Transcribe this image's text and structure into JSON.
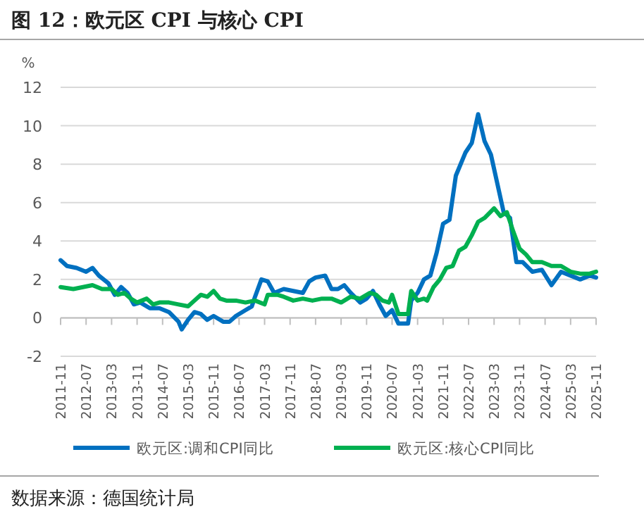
{
  "chart_data": {
    "type": "line",
    "title": "图 12：欧元区 CPI 与核心 CPI",
    "ylabel": "%",
    "annotations": [
      "数据来源：德国统计局"
    ],
    "xlim": [
      "2011-11",
      "2025-11"
    ],
    "xticks": [
      {
        "value": "2011-11",
        "label": "2011-11"
      },
      {
        "value": "2012-07",
        "label": "2012-07"
      },
      {
        "value": "2013-03",
        "label": "2013-03"
      },
      {
        "value": "2013-11",
        "label": "2013-11"
      },
      {
        "value": "2014-07",
        "label": "2014-07"
      },
      {
        "value": "2015-03",
        "label": "2015-03"
      },
      {
        "value": "2015-11",
        "label": "2015-11"
      },
      {
        "value": "2016-07",
        "label": "2016-07"
      },
      {
        "value": "2017-03",
        "label": "2017-03"
      },
      {
        "value": "2017-11",
        "label": "2017-11"
      },
      {
        "value": "2018-07",
        "label": "2018-07"
      },
      {
        "value": "2019-03",
        "label": "2019-03"
      },
      {
        "value": "2019-11",
        "label": "2019-11"
      },
      {
        "value": "2020-07",
        "label": "2020-07"
      },
      {
        "value": "2021-03",
        "label": "2021-03"
      },
      {
        "value": "2021-11",
        "label": "2021-11"
      },
      {
        "value": "2022-07",
        "label": "2022-07"
      },
      {
        "value": "2023-03",
        "label": "2023-03"
      },
      {
        "value": "2023-11",
        "label": "2023-11"
      },
      {
        "value": "2024-07",
        "label": "2024-07"
      },
      {
        "value": "2025-03",
        "label": "2025-03"
      },
      {
        "value": "2025-11",
        "label": "2025-11"
      }
    ],
    "ylim": [
      -2,
      12
    ],
    "yticks": [
      -2,
      0,
      2,
      4,
      6,
      8,
      10,
      12
    ],
    "grid": "y",
    "legend": "bottom",
    "line_style": "solid",
    "marker": "none",
    "series": [
      {
        "name": "欧元区:调和CPI同比",
        "color": "#0070c0",
        "x": [
          "2011-11",
          "2012-01",
          "2012-04",
          "2012-07",
          "2012-09",
          "2012-11",
          "2013-02",
          "2013-04",
          "2013-06",
          "2013-08",
          "2013-10",
          "2013-12",
          "2014-03",
          "2014-06",
          "2014-09",
          "2014-12",
          "2015-01",
          "2015-03",
          "2015-05",
          "2015-07",
          "2015-09",
          "2015-11",
          "2016-02",
          "2016-04",
          "2016-06",
          "2016-09",
          "2016-11",
          "2016-12",
          "2017-02",
          "2017-04",
          "2017-06",
          "2017-09",
          "2017-12",
          "2018-03",
          "2018-05",
          "2018-07",
          "2018-10",
          "2018-12",
          "2019-02",
          "2019-04",
          "2019-06",
          "2019-09",
          "2019-11",
          "2020-01",
          "2020-03",
          "2020-05",
          "2020-07",
          "2020-09",
          "2020-12",
          "2021-01",
          "2021-03",
          "2021-05",
          "2021-07",
          "2021-09",
          "2021-11",
          "2022-01",
          "2022-03",
          "2022-06",
          "2022-08",
          "2022-10",
          "2022-12",
          "2023-02",
          "2023-04",
          "2023-06",
          "2023-08",
          "2023-10",
          "2023-12",
          "2024-03",
          "2024-06",
          "2024-09",
          "2024-12",
          "2025-03",
          "2025-06",
          "2025-09",
          "2025-11"
        ],
        "values": [
          3.0,
          2.7,
          2.6,
          2.4,
          2.6,
          2.2,
          1.8,
          1.2,
          1.6,
          1.3,
          0.7,
          0.8,
          0.5,
          0.5,
          0.3,
          -0.2,
          -0.6,
          -0.1,
          0.3,
          0.2,
          -0.1,
          0.1,
          -0.2,
          -0.2,
          0.1,
          0.4,
          0.6,
          1.1,
          2.0,
          1.9,
          1.3,
          1.5,
          1.4,
          1.3,
          1.9,
          2.1,
          2.2,
          1.5,
          1.5,
          1.7,
          1.3,
          0.8,
          1.0,
          1.4,
          0.7,
          0.1,
          0.4,
          -0.3,
          -0.3,
          0.9,
          1.3,
          2.0,
          2.2,
          3.4,
          4.9,
          5.1,
          7.4,
          8.6,
          9.1,
          10.6,
          9.2,
          8.5,
          7.0,
          5.5,
          5.2,
          2.9,
          2.9,
          2.4,
          2.5,
          1.7,
          2.4,
          2.2,
          2.0,
          2.2,
          2.1
        ]
      },
      {
        "name": "欧元区:核心CPI同比",
        "color": "#00b050",
        "x": [
          "2011-11",
          "2012-03",
          "2012-06",
          "2012-09",
          "2012-12",
          "2013-03",
          "2013-05",
          "2013-07",
          "2013-09",
          "2013-11",
          "2014-02",
          "2014-04",
          "2014-06",
          "2014-09",
          "2014-12",
          "2015-03",
          "2015-05",
          "2015-07",
          "2015-09",
          "2015-11",
          "2016-01",
          "2016-03",
          "2016-06",
          "2016-09",
          "2016-12",
          "2017-03",
          "2017-04",
          "2017-07",
          "2017-09",
          "2017-12",
          "2018-03",
          "2018-06",
          "2018-09",
          "2018-12",
          "2019-03",
          "2019-06",
          "2019-09",
          "2019-12",
          "2020-02",
          "2020-04",
          "2020-06",
          "2020-07",
          "2020-09",
          "2020-12",
          "2021-01",
          "2021-03",
          "2021-05",
          "2021-06",
          "2021-08",
          "2021-10",
          "2021-12",
          "2022-02",
          "2022-04",
          "2022-06",
          "2022-08",
          "2022-10",
          "2022-12",
          "2023-03",
          "2023-05",
          "2023-07",
          "2023-09",
          "2023-11",
          "2024-01",
          "2024-03",
          "2024-06",
          "2024-09",
          "2024-12",
          "2025-03",
          "2025-06",
          "2025-09",
          "2025-11"
        ],
        "values": [
          1.6,
          1.5,
          1.6,
          1.7,
          1.5,
          1.5,
          1.2,
          1.3,
          1.0,
          0.8,
          1.0,
          0.7,
          0.8,
          0.8,
          0.7,
          0.6,
          0.9,
          1.2,
          1.1,
          1.4,
          1.0,
          0.9,
          0.9,
          0.8,
          0.9,
          0.7,
          1.2,
          1.2,
          1.1,
          0.9,
          1.0,
          0.9,
          1.0,
          1.0,
          0.8,
          1.1,
          1.0,
          1.3,
          1.2,
          0.9,
          0.8,
          1.2,
          0.2,
          0.2,
          1.4,
          0.9,
          1.0,
          0.9,
          1.6,
          2.0,
          2.6,
          2.7,
          3.5,
          3.7,
          4.3,
          5.0,
          5.2,
          5.7,
          5.3,
          5.5,
          4.5,
          3.6,
          3.3,
          2.9,
          2.9,
          2.7,
          2.7,
          2.4,
          2.3,
          2.3,
          2.4
        ]
      }
    ]
  }
}
